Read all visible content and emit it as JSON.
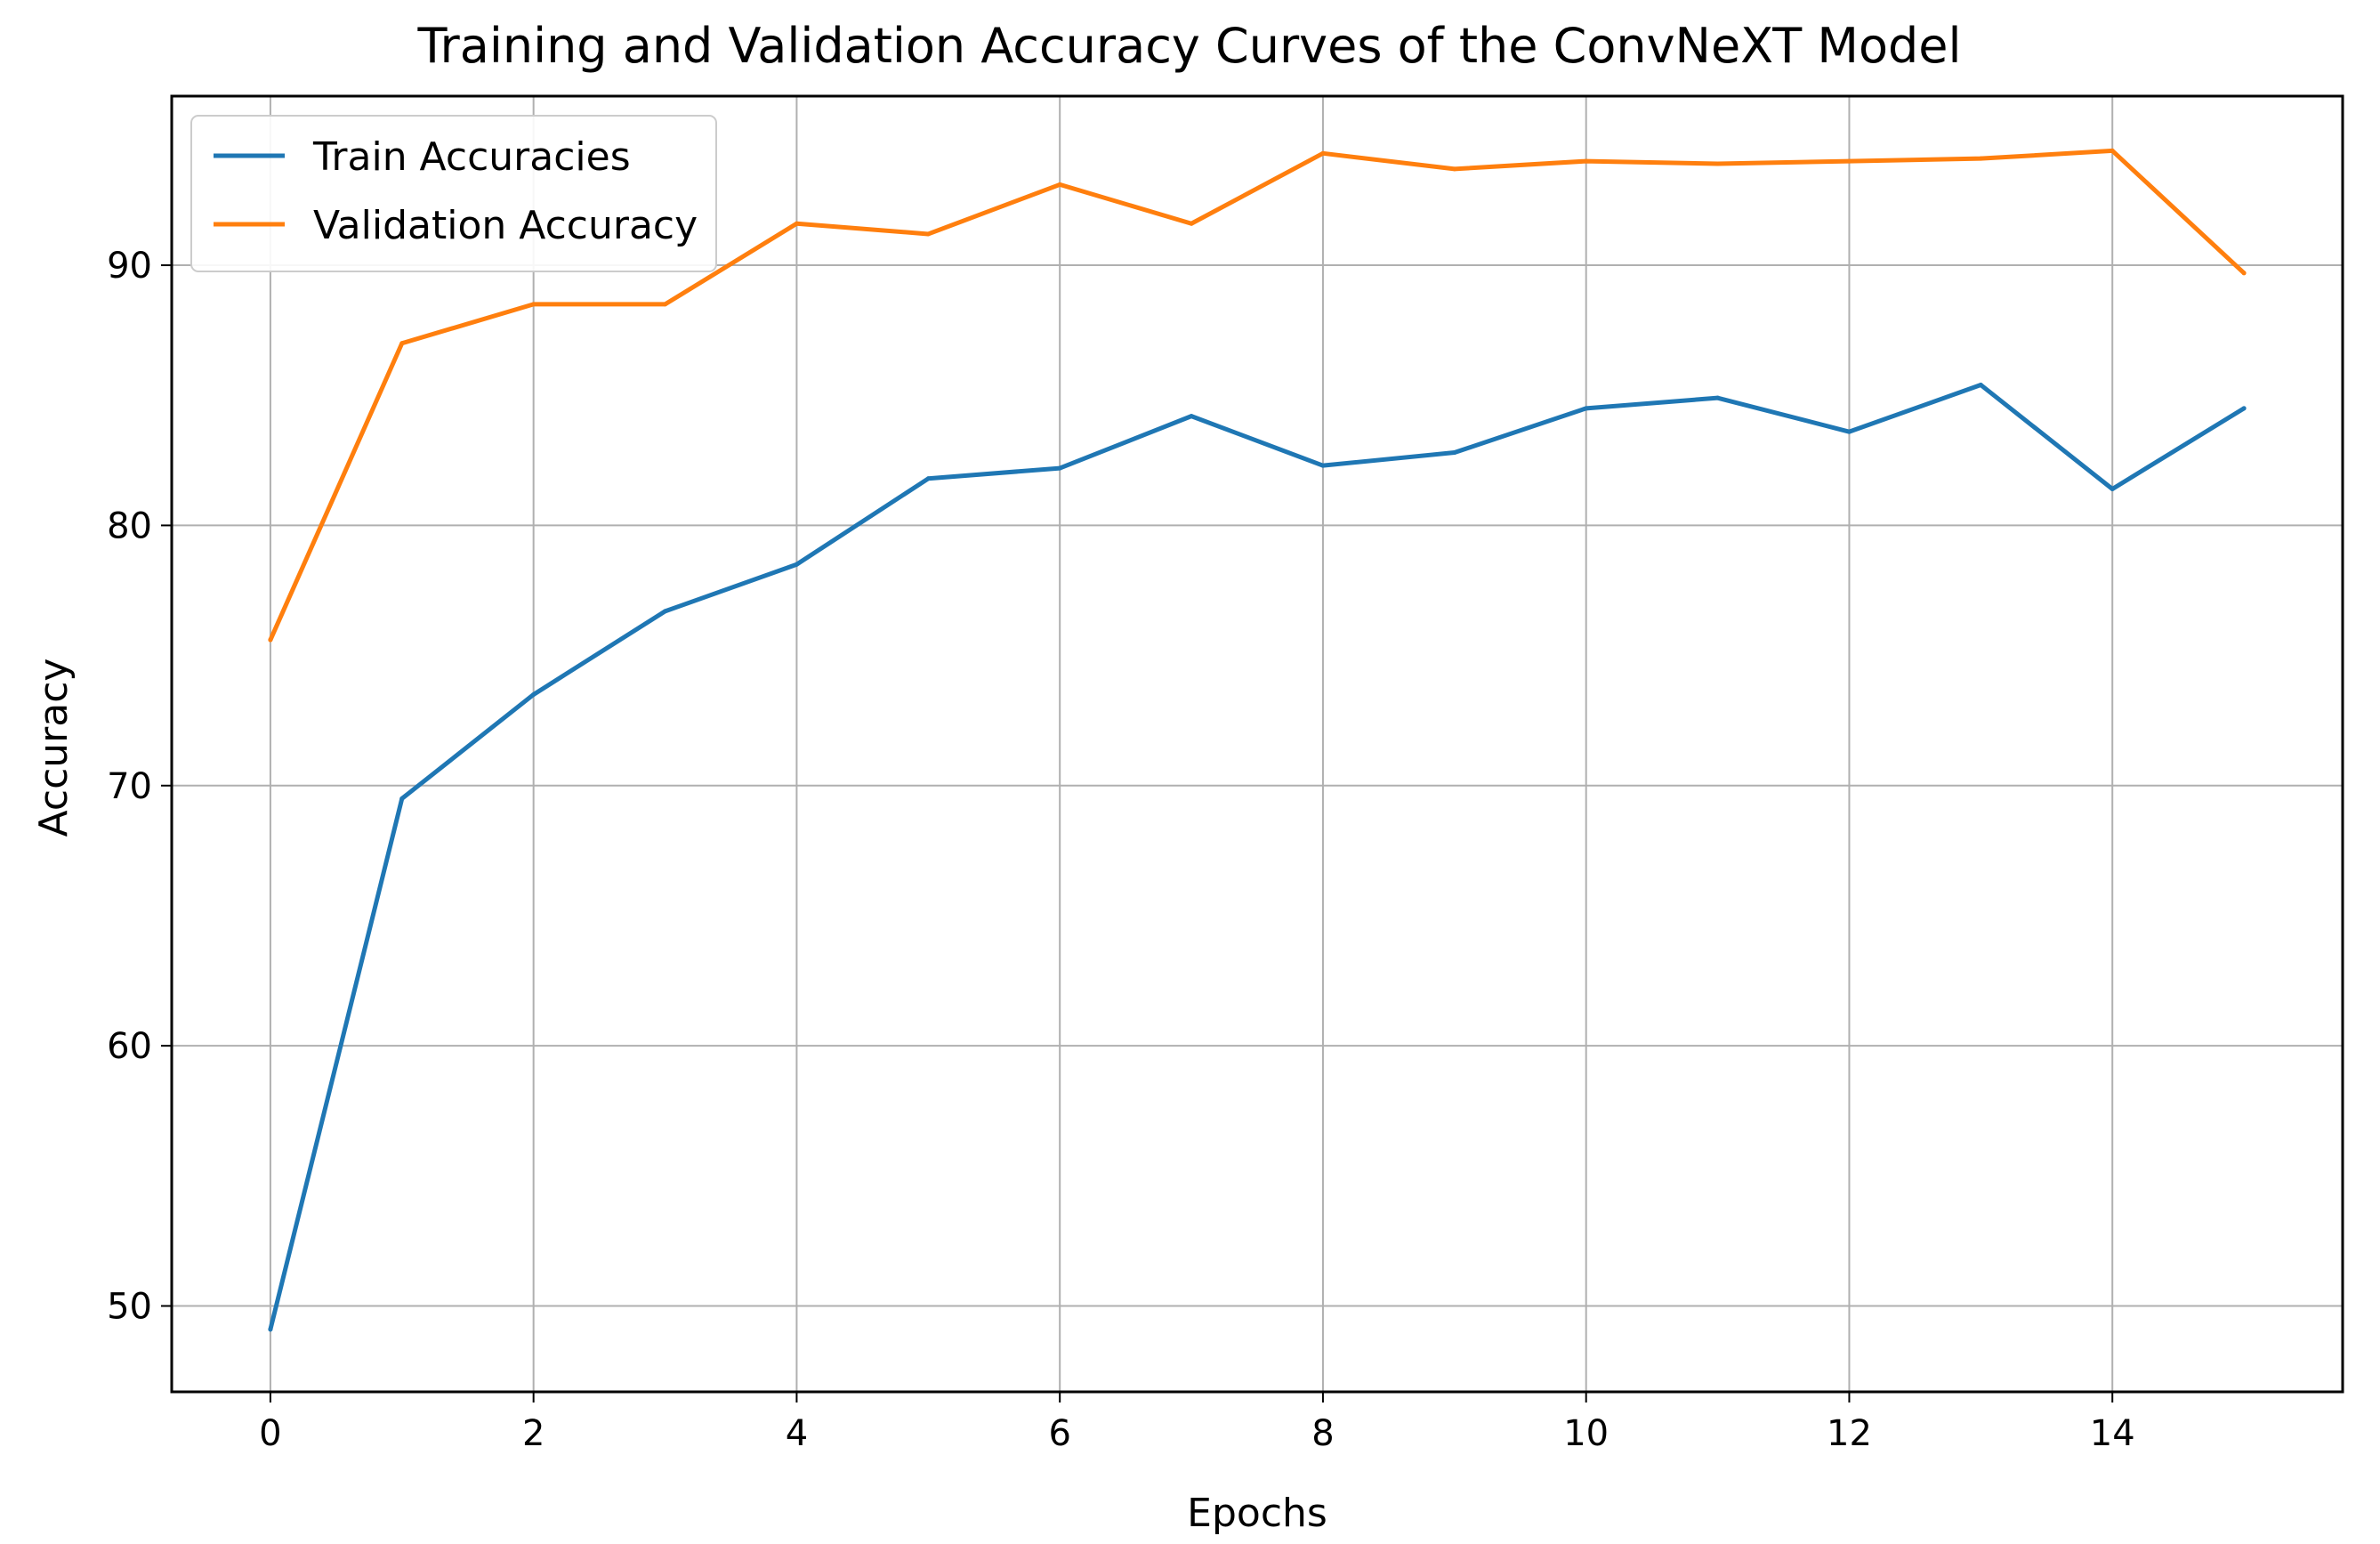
{
  "chart_data": {
    "type": "line",
    "title": "Training and Validation Accuracy Curves of the ConvNeXT Model",
    "xlabel": "Epochs",
    "ylabel": "Accuracy",
    "x": [
      0,
      1,
      2,
      3,
      4,
      5,
      6,
      7,
      8,
      9,
      10,
      11,
      12,
      13,
      14,
      15
    ],
    "xlim": [
      -0.75,
      15.75
    ],
    "ylim": [
      46.7,
      96.5
    ],
    "xticks": [
      "0",
      "2",
      "4",
      "6",
      "8",
      "10",
      "12",
      "14"
    ],
    "xtick_values": [
      0,
      2,
      4,
      6,
      8,
      10,
      12,
      14
    ],
    "yticks": [
      "50",
      "60",
      "70",
      "80",
      "90"
    ],
    "ytick_values": [
      50,
      60,
      70,
      80,
      90
    ],
    "grid": true,
    "legend_position": "top-left",
    "series": [
      {
        "name": "Train Accuracies",
        "color": "#1f77b4",
        "values": [
          49.1,
          69.5,
          73.5,
          76.7,
          78.5,
          81.8,
          82.2,
          84.2,
          82.3,
          82.8,
          84.5,
          84.9,
          83.6,
          85.4,
          81.4,
          84.5
        ]
      },
      {
        "name": "Validation Accuracy",
        "color": "#ff7f0e",
        "values": [
          75.6,
          87.0,
          88.5,
          88.5,
          91.6,
          91.2,
          93.1,
          91.6,
          94.3,
          93.7,
          94.0,
          93.9,
          94.0,
          94.1,
          94.4,
          89.7
        ]
      }
    ]
  }
}
